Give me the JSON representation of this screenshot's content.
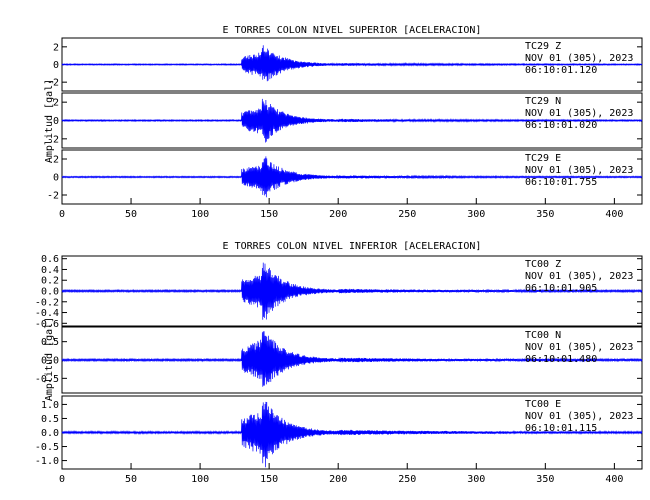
{
  "chart_data": [
    {
      "type": "line",
      "title": "E TORRES COLON NIVEL SUPERIOR [ACELERACION]",
      "ylabel": "Amplitud  [gal]",
      "xlim": [
        0,
        420
      ],
      "x_ticks": [
        "0",
        "50",
        "100",
        "150",
        "200",
        "250",
        "300",
        "350",
        "400"
      ],
      "series_color": "#0000ff",
      "panels": [
        {
          "channel": "TC29   Z",
          "date": "NOV 01 (305), 2023",
          "time": "06:10:01.120",
          "ylim": [
            -3,
            3
          ],
          "y_ticks": [
            "2",
            "0",
            "-2"
          ],
          "peak": 2.2
        },
        {
          "channel": "TC29   N",
          "date": "NOV 01 (305), 2023",
          "time": "06:10:01.020",
          "ylim": [
            -3,
            3
          ],
          "y_ticks": [
            "2",
            "0",
            "-2"
          ],
          "peak": 2.4
        },
        {
          "channel": "TC29   E",
          "date": "NOV 01 (305), 2023",
          "time": "06:10:01.755",
          "ylim": [
            -3,
            3
          ],
          "y_ticks": [
            "2",
            "0",
            "-2"
          ],
          "peak": 2.4
        }
      ]
    },
    {
      "type": "line",
      "title": "E TORRES COLON NIVEL INFERIOR [ACELERACION]",
      "ylabel": "Amplitud  [gal]",
      "xlim": [
        0,
        420
      ],
      "x_ticks": [
        "0",
        "50",
        "100",
        "150",
        "200",
        "250",
        "300",
        "350",
        "400"
      ],
      "series_color": "#0000ff",
      "panels": [
        {
          "channel": "TC00   Z",
          "date": "NOV 01 (305), 2023",
          "time": "06:10:01.905",
          "ylim": [
            -0.65,
            0.65
          ],
          "y_ticks": [
            "0.6",
            "0.4",
            "0.2",
            "0.0",
            "-0.2",
            "-0.4",
            "-0.6"
          ],
          "peak": 0.55
        },
        {
          "channel": "TC00   N",
          "date": "NOV 01 (305), 2023",
          "time": "06:10:01.480",
          "ylim": [
            -0.9,
            0.9
          ],
          "y_ticks": [
            "0.5",
            "0.0",
            "-0.5"
          ],
          "peak": 0.85
        },
        {
          "channel": "TC00   E",
          "date": "NOV 01 (305), 2023",
          "time": "06:10:01.115",
          "ylim": [
            -1.3,
            1.3
          ],
          "y_ticks": [
            "1.0",
            "0.5",
            "0.0",
            "-0.5",
            "-1.0"
          ],
          "peak": 1.25
        }
      ]
    }
  ]
}
